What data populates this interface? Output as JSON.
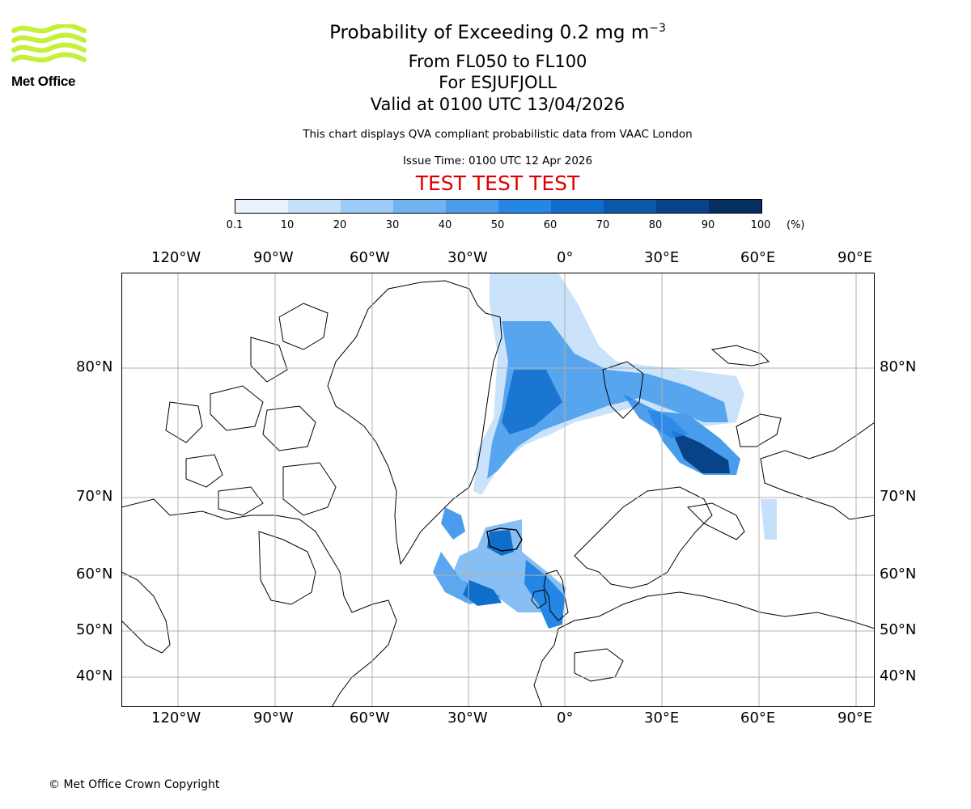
{
  "logo": {
    "text": "Met Office",
    "color": "#c4f03a"
  },
  "title": {
    "line1_main": "Probability of Exceeding 0.2 mg m",
    "line1_sup": "−3",
    "line2": "From FL050 to FL100",
    "line3": "For ESJUFJOLL",
    "line4": "Valid at 0100 UTC 13/04/2026"
  },
  "description": "This chart displays QVA compliant probabilistic data from VAAC London",
  "issue_time": "Issue Time: 0100 UTC 12 Apr 2026",
  "test_banner": "TEST TEST TEST",
  "colorbar": {
    "ticks": [
      "0.1",
      "10",
      "20",
      "30",
      "40",
      "50",
      "60",
      "70",
      "80",
      "90",
      "100"
    ],
    "unit": "(%)",
    "colors": [
      "#e9f3fe",
      "#c4e0fb",
      "#9ccbf6",
      "#72b3f1",
      "#4a9ded",
      "#2586e6",
      "#0f6dcb",
      "#0b57ab",
      "#084389",
      "#052f63"
    ]
  },
  "map": {
    "lon_labels": [
      "120°W",
      "90°W",
      "60°W",
      "30°W",
      "0°",
      "30°E",
      "60°E",
      "90°E"
    ],
    "lat_labels": [
      "80°N",
      "70°N",
      "60°N",
      "50°N",
      "40°N"
    ]
  },
  "copyright": "© Met Office Crown Copyright"
}
